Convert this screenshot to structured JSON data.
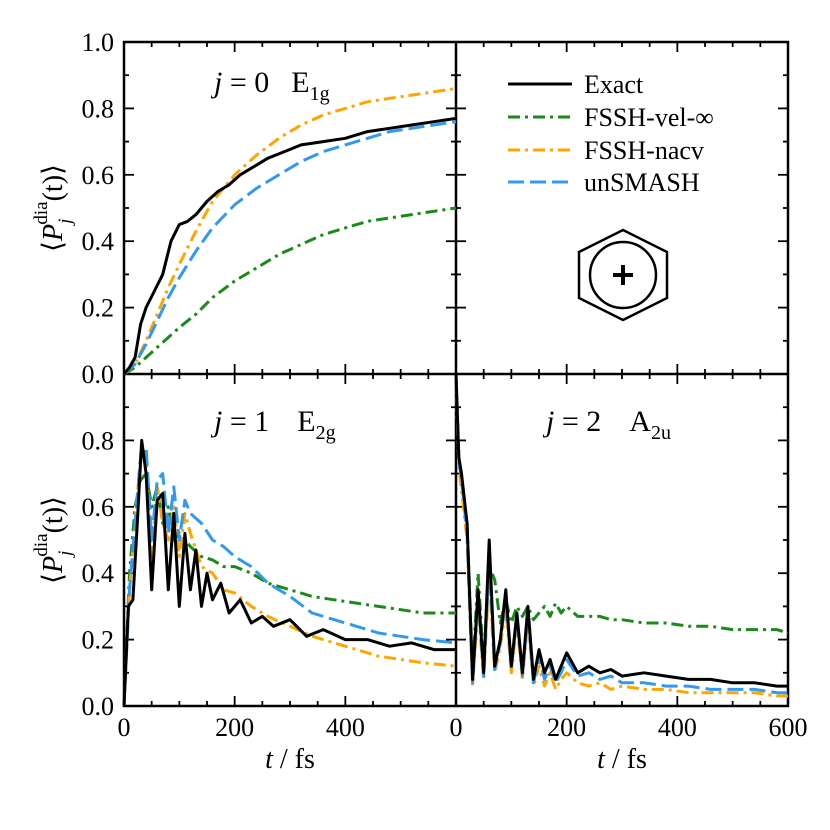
{
  "figure": {
    "ylabel_parts": {
      "open": "⟨",
      "P": "P",
      "sub": "j",
      "sup": "dia",
      "close": "(t)⟩"
    },
    "xlabel_parts": {
      "t": "t",
      "unit": " / fs"
    },
    "legend": [
      "Exact",
      "FSSH-vel-∞",
      "FSSH-nacv",
      "unSMASH"
    ],
    "x_ticks_left": [
      "0",
      "200",
      "400"
    ],
    "x_ticks_right": [
      "0",
      "200",
      "400",
      "600"
    ],
    "y_ticks_top": [
      "0.0",
      "0.2",
      "0.4",
      "0.6",
      "0.8",
      "1.0"
    ],
    "y_ticks_bottom": [
      "0.0",
      "0.2",
      "0.4",
      "0.6",
      "0.8"
    ],
    "colors": {
      "Exact": "#000000",
      "FSSH-vel-∞": "#1a8a1a",
      "FSSH-nacv": "#ffa500",
      "unSMASH": "#3399ee"
    },
    "icon": "benzene-cation-icon"
  },
  "chart_data": [
    {
      "type": "line",
      "panel": "top-left",
      "label": {
        "j": "j",
        "eq": " = 0",
        "state": "E",
        "sub": "1g"
      },
      "xlim": [
        0,
        600
      ],
      "ylim": [
        0,
        1.0
      ],
      "series": [
        {
          "name": "Exact",
          "x": [
            0,
            10,
            20,
            30,
            40,
            55,
            70,
            85,
            100,
            115,
            130,
            150,
            170,
            190,
            210,
            230,
            260,
            290,
            320,
            360,
            400,
            440,
            480,
            520,
            560,
            600
          ],
          "y": [
            0,
            0.02,
            0.05,
            0.15,
            0.2,
            0.25,
            0.3,
            0.4,
            0.45,
            0.46,
            0.48,
            0.52,
            0.55,
            0.57,
            0.6,
            0.62,
            0.65,
            0.67,
            0.69,
            0.7,
            0.71,
            0.73,
            0.74,
            0.75,
            0.76,
            0.77
          ]
        },
        {
          "name": "FSSH-vel-∞",
          "x": [
            0,
            20,
            40,
            60,
            80,
            100,
            130,
            160,
            200,
            240,
            280,
            320,
            360,
            400,
            440,
            480,
            520,
            560,
            600
          ],
          "y": [
            0,
            0.02,
            0.05,
            0.08,
            0.11,
            0.14,
            0.18,
            0.23,
            0.28,
            0.32,
            0.36,
            0.39,
            0.42,
            0.44,
            0.46,
            0.47,
            0.48,
            0.49,
            0.5
          ]
        },
        {
          "name": "FSSH-nacv",
          "x": [
            0,
            20,
            40,
            60,
            80,
            100,
            130,
            160,
            200,
            240,
            280,
            320,
            360,
            400,
            440,
            480,
            520,
            560,
            600
          ],
          "y": [
            0,
            0.03,
            0.1,
            0.18,
            0.26,
            0.33,
            0.43,
            0.52,
            0.6,
            0.66,
            0.71,
            0.75,
            0.78,
            0.8,
            0.82,
            0.83,
            0.84,
            0.85,
            0.86
          ]
        },
        {
          "name": "unSMASH",
          "x": [
            0,
            20,
            40,
            60,
            80,
            100,
            130,
            160,
            200,
            240,
            280,
            320,
            360,
            400,
            440,
            480,
            520,
            560,
            600
          ],
          "y": [
            0,
            0.03,
            0.09,
            0.16,
            0.23,
            0.29,
            0.37,
            0.44,
            0.51,
            0.56,
            0.6,
            0.64,
            0.67,
            0.69,
            0.71,
            0.73,
            0.74,
            0.75,
            0.76
          ]
        }
      ]
    },
    {
      "type": "line",
      "panel": "bottom-left",
      "label": {
        "j": "j",
        "eq": " = 1",
        "state": "E",
        "sub": "2g"
      },
      "xlim": [
        0,
        600
      ],
      "ylim": [
        0,
        1.0
      ],
      "series": [
        {
          "name": "Exact",
          "x": [
            0,
            8,
            16,
            24,
            32,
            40,
            50,
            60,
            70,
            80,
            90,
            100,
            110,
            120,
            130,
            140,
            150,
            160,
            175,
            190,
            210,
            230,
            250,
            270,
            300,
            330,
            360,
            400,
            440,
            480,
            520,
            560,
            600
          ],
          "y": [
            0,
            0.3,
            0.32,
            0.55,
            0.8,
            0.7,
            0.35,
            0.62,
            0.64,
            0.35,
            0.58,
            0.3,
            0.52,
            0.35,
            0.47,
            0.3,
            0.4,
            0.32,
            0.37,
            0.28,
            0.32,
            0.25,
            0.27,
            0.24,
            0.26,
            0.21,
            0.23,
            0.2,
            0.2,
            0.18,
            0.19,
            0.17,
            0.17
          ]
        },
        {
          "name": "FSSH-vel-∞",
          "x": [
            0,
            10,
            20,
            30,
            40,
            50,
            60,
            70,
            80,
            90,
            100,
            120,
            140,
            160,
            180,
            200,
            230,
            260,
            300,
            340,
            380,
            420,
            460,
            500,
            540,
            600
          ],
          "y": [
            0,
            0.4,
            0.6,
            0.68,
            0.7,
            0.6,
            0.66,
            0.55,
            0.6,
            0.5,
            0.52,
            0.48,
            0.45,
            0.44,
            0.42,
            0.42,
            0.4,
            0.37,
            0.35,
            0.33,
            0.32,
            0.31,
            0.3,
            0.29,
            0.28,
            0.28
          ]
        },
        {
          "name": "FSSH-nacv",
          "x": [
            0,
            10,
            20,
            30,
            40,
            50,
            60,
            70,
            80,
            90,
            100,
            110,
            120,
            140,
            160,
            180,
            200,
            230,
            260,
            300,
            340,
            380,
            420,
            460,
            500,
            540,
            600
          ],
          "y": [
            0,
            0.35,
            0.55,
            0.76,
            0.75,
            0.45,
            0.66,
            0.55,
            0.5,
            0.6,
            0.45,
            0.58,
            0.52,
            0.42,
            0.4,
            0.35,
            0.34,
            0.3,
            0.27,
            0.24,
            0.21,
            0.19,
            0.17,
            0.15,
            0.14,
            0.13,
            0.12
          ]
        },
        {
          "name": "unSMASH",
          "x": [
            0,
            10,
            20,
            30,
            40,
            50,
            60,
            70,
            80,
            90,
            100,
            110,
            120,
            140,
            160,
            180,
            200,
            230,
            260,
            300,
            340,
            380,
            420,
            460,
            500,
            540,
            600
          ],
          "y": [
            0,
            0.35,
            0.55,
            0.75,
            0.78,
            0.5,
            0.68,
            0.7,
            0.52,
            0.66,
            0.5,
            0.62,
            0.58,
            0.55,
            0.5,
            0.48,
            0.45,
            0.42,
            0.37,
            0.33,
            0.28,
            0.26,
            0.24,
            0.22,
            0.21,
            0.2,
            0.19
          ]
        }
      ]
    },
    {
      "type": "line",
      "panel": "bottom-right",
      "label": {
        "j": "j",
        "eq": " = 2",
        "state": "A",
        "sub": "2u"
      },
      "xlim": [
        0,
        600
      ],
      "ylim": [
        0,
        1.0
      ],
      "series": [
        {
          "name": "Exact",
          "x": [
            0,
            5,
            10,
            20,
            30,
            40,
            50,
            60,
            70,
            80,
            90,
            100,
            110,
            120,
            130,
            140,
            150,
            160,
            170,
            180,
            190,
            200,
            220,
            240,
            260,
            280,
            300,
            340,
            380,
            420,
            460,
            500,
            540,
            580,
            600
          ],
          "y": [
            1.0,
            0.75,
            0.7,
            0.55,
            0.08,
            0.35,
            0.1,
            0.5,
            0.12,
            0.2,
            0.35,
            0.12,
            0.28,
            0.1,
            0.3,
            0.08,
            0.17,
            0.1,
            0.14,
            0.08,
            0.12,
            0.16,
            0.1,
            0.12,
            0.1,
            0.11,
            0.09,
            0.1,
            0.09,
            0.08,
            0.08,
            0.07,
            0.07,
            0.06,
            0.06
          ]
        },
        {
          "name": "FSSH-vel-∞",
          "x": [
            0,
            5,
            10,
            20,
            30,
            40,
            50,
            60,
            70,
            80,
            90,
            100,
            110,
            120,
            130,
            140,
            150,
            160,
            170,
            180,
            190,
            200,
            220,
            240,
            260,
            280,
            300,
            340,
            380,
            420,
            460,
            500,
            540,
            580,
            600
          ],
          "y": [
            1.0,
            0.75,
            0.65,
            0.55,
            0.1,
            0.4,
            0.12,
            0.42,
            0.38,
            0.25,
            0.32,
            0.25,
            0.3,
            0.27,
            0.3,
            0.26,
            0.28,
            0.3,
            0.27,
            0.31,
            0.28,
            0.3,
            0.27,
            0.27,
            0.27,
            0.26,
            0.26,
            0.25,
            0.25,
            0.24,
            0.24,
            0.23,
            0.23,
            0.23,
            0.22
          ]
        },
        {
          "name": "FSSH-nacv",
          "x": [
            0,
            5,
            10,
            20,
            30,
            40,
            50,
            60,
            70,
            80,
            90,
            100,
            110,
            120,
            130,
            140,
            150,
            160,
            170,
            180,
            190,
            200,
            220,
            240,
            260,
            280,
            300,
            340,
            380,
            420,
            460,
            500,
            540,
            580,
            600
          ],
          "y": [
            1.0,
            0.72,
            0.65,
            0.5,
            0.06,
            0.3,
            0.08,
            0.4,
            0.1,
            0.18,
            0.3,
            0.1,
            0.25,
            0.08,
            0.26,
            0.06,
            0.12,
            0.06,
            0.1,
            0.05,
            0.08,
            0.1,
            0.07,
            0.06,
            0.07,
            0.05,
            0.06,
            0.05,
            0.05,
            0.04,
            0.04,
            0.04,
            0.04,
            0.03,
            0.03
          ]
        },
        {
          "name": "unSMASH",
          "x": [
            0,
            5,
            10,
            20,
            30,
            40,
            50,
            60,
            70,
            80,
            90,
            100,
            110,
            120,
            130,
            140,
            150,
            160,
            170,
            180,
            190,
            200,
            220,
            240,
            260,
            280,
            300,
            340,
            380,
            420,
            460,
            500,
            540,
            580,
            600
          ],
          "y": [
            1.0,
            0.74,
            0.68,
            0.52,
            0.07,
            0.33,
            0.09,
            0.45,
            0.11,
            0.19,
            0.33,
            0.11,
            0.27,
            0.09,
            0.28,
            0.07,
            0.15,
            0.08,
            0.12,
            0.07,
            0.1,
            0.14,
            0.09,
            0.1,
            0.08,
            0.09,
            0.07,
            0.07,
            0.06,
            0.06,
            0.05,
            0.05,
            0.05,
            0.04,
            0.04
          ]
        }
      ]
    }
  ]
}
